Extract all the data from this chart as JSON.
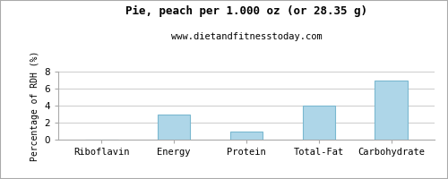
{
  "title": "Pie, peach per 1.000 oz (or 28.35 g)",
  "subtitle": "www.dietandfitnesstoday.com",
  "categories": [
    "Riboflavin",
    "Energy",
    "Protein",
    "Total-Fat",
    "Carbohydrate"
  ],
  "values": [
    0,
    3,
    1,
    4,
    7
  ],
  "bar_color": "#aed6e8",
  "bar_edge_color": "#7ab8d0",
  "ylabel": "Percentage of RDH (%)",
  "ylim": [
    0,
    8
  ],
  "yticks": [
    0,
    2,
    4,
    6,
    8
  ],
  "background_color": "#ffffff",
  "grid_color": "#cccccc",
  "border_color": "#aaaaaa",
  "title_fontsize": 9,
  "subtitle_fontsize": 7.5,
  "label_fontsize": 7,
  "tick_fontsize": 7.5
}
